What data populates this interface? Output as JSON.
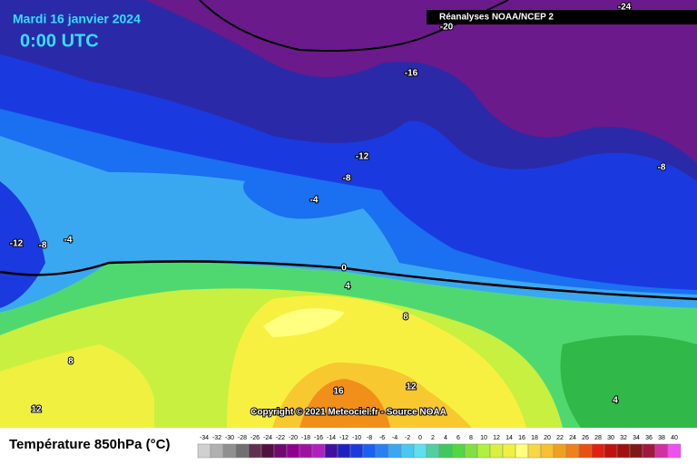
{
  "header": {
    "date": "Mardi 16 janvier 2024",
    "time": "0:00 UTC",
    "source": "Réanalyses NOAA/NCEP 2"
  },
  "contour_labels": [
    "-24",
    "-20",
    "-16",
    "-12",
    "-8",
    "-8",
    "-4",
    "-12",
    "-8",
    "-4",
    "0",
    "4",
    "8",
    "8",
    "12",
    "16",
    "12",
    "4"
  ],
  "copyright": "Copyright © 2021 Meteociel.fr - Source NOAA",
  "legend": {
    "title": "Température 850hPa (°C)",
    "scale": [
      -34,
      -32,
      -30,
      -28,
      -26,
      -24,
      -22,
      -20,
      -18,
      -16,
      -14,
      -12,
      -10,
      -8,
      -6,
      -4,
      -2,
      0,
      2,
      4,
      6,
      8,
      10,
      12,
      14,
      16,
      18,
      20,
      22,
      24,
      26,
      28,
      30,
      32,
      34,
      36,
      38,
      40
    ]
  }
}
